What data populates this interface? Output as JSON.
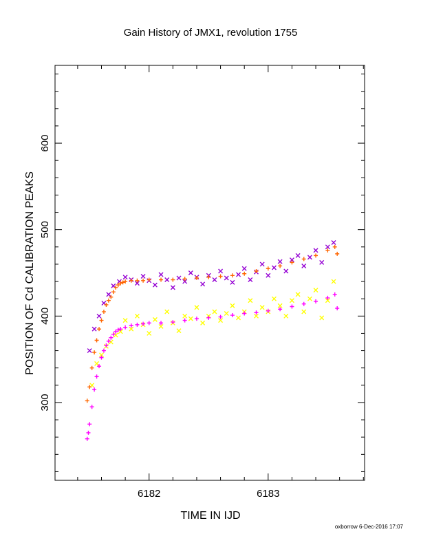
{
  "footer": {
    "credit": "oxborrow 6-Dec-2016 17:07"
  },
  "chart_data": {
    "type": "scatter",
    "title": "Gain History of JMX1, revolution 1755",
    "xlabel": "TIME IN IJD",
    "ylabel": "POSITION OF Cd CALIBRATION PEAKS",
    "xlim": [
      6181.21,
      6183.81
    ],
    "ylim": [
      210,
      690
    ],
    "x_ticks": [
      6182,
      6183
    ],
    "y_ticks": [
      300,
      400,
      500,
      600
    ],
    "grid": false,
    "legend": "none",
    "series": [
      {
        "color": "#9400d3",
        "marker": "x",
        "x": [
          6181.5,
          6181.54,
          6181.58,
          6181.62,
          6181.66,
          6181.7,
          6181.75,
          6181.8,
          6181.85,
          6181.9,
          6181.95,
          6182.0,
          6182.05,
          6182.1,
          6182.15,
          6182.2,
          6182.25,
          6182.3,
          6182.35,
          6182.4,
          6182.45,
          6182.5,
          6182.55,
          6182.6,
          6182.65,
          6182.7,
          6182.75,
          6182.8,
          6182.85,
          6182.9,
          6182.95,
          6183.0,
          6183.05,
          6183.1,
          6183.15,
          6183.2,
          6183.25,
          6183.3,
          6183.35,
          6183.4,
          6183.45,
          6183.5,
          6183.55
        ],
        "y": [
          360,
          385,
          400,
          415,
          425,
          435,
          440,
          445,
          442,
          438,
          446,
          441,
          436,
          448,
          442,
          433,
          444,
          440,
          450,
          445,
          437,
          447,
          442,
          452,
          444,
          439,
          448,
          455,
          442,
          451,
          460,
          447,
          456,
          463,
          452,
          465,
          470,
          458,
          468,
          476,
          462,
          480,
          485
        ]
      },
      {
        "color": "#ffff00",
        "marker": "x",
        "x": [
          6181.52,
          6181.56,
          6181.6,
          6181.64,
          6181.68,
          6181.72,
          6181.76,
          6181.8,
          6181.85,
          6181.9,
          6181.95,
          6182.0,
          6182.05,
          6182.1,
          6182.15,
          6182.2,
          6182.25,
          6182.3,
          6182.35,
          6182.4,
          6182.45,
          6182.5,
          6182.55,
          6182.6,
          6182.65,
          6182.7,
          6182.75,
          6182.8,
          6182.85,
          6182.9,
          6182.95,
          6183.0,
          6183.05,
          6183.1,
          6183.15,
          6183.2,
          6183.25,
          6183.3,
          6183.35,
          6183.4,
          6183.45,
          6183.5,
          6183.55
        ],
        "y": [
          320,
          345,
          355,
          365,
          370,
          378,
          382,
          395,
          385,
          400,
          390,
          380,
          396,
          388,
          405,
          392,
          383,
          400,
          397,
          410,
          392,
          400,
          405,
          395,
          403,
          412,
          398,
          405,
          418,
          400,
          410,
          405,
          420,
          412,
          400,
          418,
          425,
          405,
          420,
          430,
          398,
          418,
          440
        ]
      },
      {
        "color": "#ff6600",
        "marker": "+",
        "x": [
          6181.48,
          6181.5,
          6181.52,
          6181.54,
          6181.56,
          6181.58,
          6181.6,
          6181.62,
          6181.64,
          6181.66,
          6181.68,
          6181.7,
          6181.72,
          6181.74,
          6181.76,
          6181.78,
          6181.8,
          6181.85,
          6181.9,
          6181.95,
          6182.0,
          6182.1,
          6182.2,
          6182.3,
          6182.4,
          6182.5,
          6182.6,
          6182.7,
          6182.8,
          6182.9,
          6183.0,
          6183.1,
          6183.2,
          6183.3,
          6183.4,
          6183.5,
          6183.56,
          6183.58
        ],
        "y": [
          302,
          318,
          340,
          358,
          372,
          385,
          395,
          405,
          413,
          418,
          422,
          428,
          433,
          436,
          438,
          439,
          440,
          441,
          441,
          441,
          442,
          442,
          442,
          443,
          444,
          445,
          446,
          447,
          449,
          452,
          455,
          458,
          462,
          466,
          470,
          476,
          480,
          472
        ]
      },
      {
        "color": "#ff00ff",
        "marker": "+",
        "x": [
          6181.48,
          6181.49,
          6181.5,
          6181.52,
          6181.54,
          6181.56,
          6181.58,
          6181.6,
          6181.62,
          6181.64,
          6181.66,
          6181.68,
          6181.7,
          6181.72,
          6181.74,
          6181.76,
          6181.8,
          6181.85,
          6181.9,
          6181.95,
          6182.0,
          6182.1,
          6182.2,
          6182.3,
          6182.4,
          6182.5,
          6182.6,
          6182.7,
          6182.8,
          6182.9,
          6183.0,
          6183.1,
          6183.2,
          6183.3,
          6183.4,
          6183.5,
          6183.56,
          6183.58
        ],
        "y": [
          258,
          265,
          275,
          295,
          315,
          330,
          342,
          352,
          360,
          366,
          371,
          375,
          379,
          382,
          384,
          385,
          387,
          389,
          390,
          391,
          392,
          392,
          393,
          395,
          397,
          398,
          399,
          401,
          403,
          404,
          406,
          408,
          411,
          414,
          417,
          421,
          425,
          409
        ]
      }
    ]
  }
}
